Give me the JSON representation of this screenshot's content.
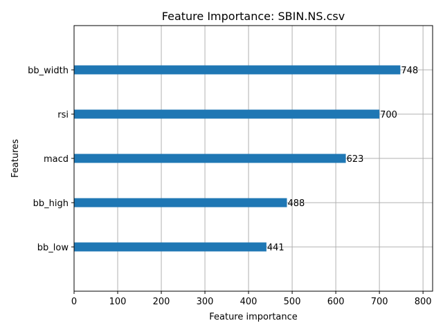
{
  "chart_data": {
    "type": "bar",
    "orientation": "horizontal",
    "title": "Feature Importance: SBIN.NS.csv",
    "xlabel": "Feature importance",
    "ylabel": "Features",
    "categories": [
      "bb_width",
      "rsi",
      "macd",
      "bb_high",
      "bb_low"
    ],
    "values": [
      748,
      700,
      623,
      488,
      441
    ],
    "value_labels": [
      "748",
      "700",
      "623",
      "488",
      "441"
    ],
    "xlim": [
      0,
      822
    ],
    "xticks": [
      0,
      100,
      200,
      300,
      400,
      500,
      600,
      700,
      800
    ],
    "xtick_labels": [
      "0",
      "100",
      "200",
      "300",
      "400",
      "500",
      "600",
      "700",
      "800"
    ],
    "grid": true,
    "bar_color": "#1f77b4",
    "grid_color": "#b0b0b0"
  }
}
